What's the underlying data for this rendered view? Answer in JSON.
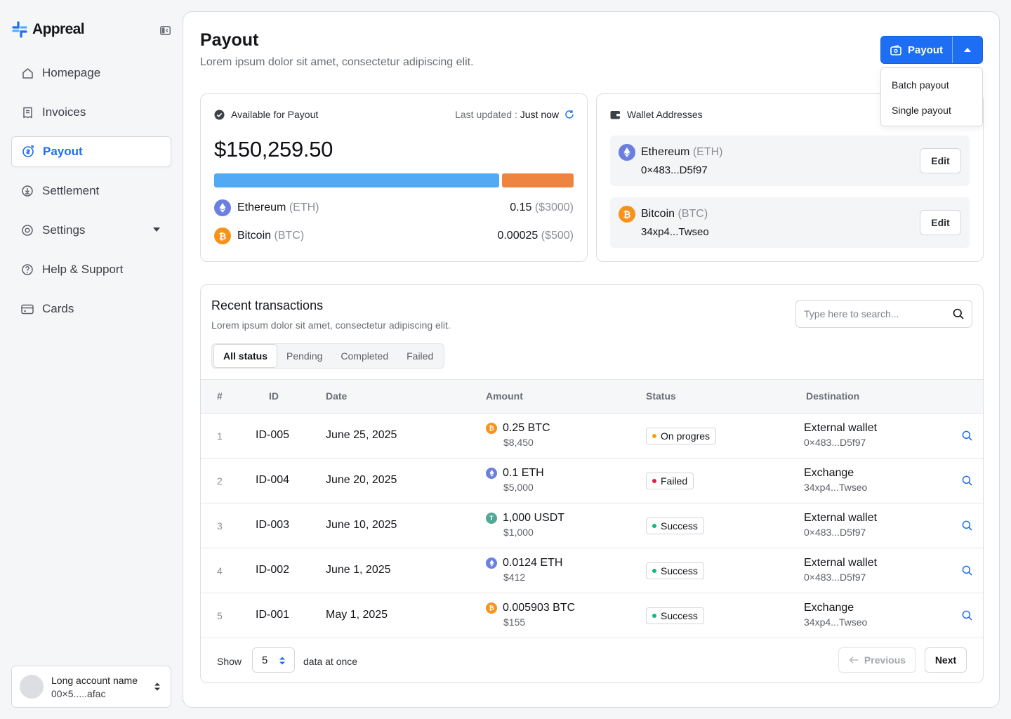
{
  "app": {
    "name": "Appreal"
  },
  "sidebar": {
    "items": [
      {
        "label": "Homepage",
        "icon": "home-icon"
      },
      {
        "label": "Invoices",
        "icon": "receipt-icon"
      },
      {
        "label": "Payout",
        "icon": "payout-icon",
        "active": true
      },
      {
        "label": "Settlement",
        "icon": "settlement-icon"
      },
      {
        "label": "Settings",
        "icon": "gear-icon",
        "has_submenu": true
      },
      {
        "label": "Help & Support",
        "icon": "help-icon"
      },
      {
        "label": "Cards",
        "icon": "card-icon"
      }
    ],
    "account": {
      "name": "Long account name",
      "address": "00×5.....afac"
    }
  },
  "header": {
    "title": "Payout",
    "subtitle": "Lorem ipsum dolor sit amet, consectetur adipiscing elit.",
    "payout_button": "Payout",
    "dropdown": [
      "Batch payout",
      "Single payout"
    ]
  },
  "available": {
    "label": "Available for Payout",
    "last_updated_label": "Last updated :",
    "last_updated_value": "Just now",
    "amount": "$150,259.50",
    "split_fraction": {
      "eth": 0.8,
      "btc": 0.2
    },
    "coins": [
      {
        "name": "Ethereum",
        "ticker": "(ETH)",
        "amount": "0.15",
        "usd": "($3000)",
        "icon": "eth-icon"
      },
      {
        "name": "Bitcoin",
        "ticker": "(BTC)",
        "amount": "0.00025",
        "usd": "($500)",
        "icon": "btc-icon"
      }
    ]
  },
  "wallets": {
    "label": "Wallet Addresses",
    "items": [
      {
        "name": "Ethereum",
        "ticker": "(ETH)",
        "address": "0×483...D5f97",
        "edit": "Edit"
      },
      {
        "name": "Bitcoin",
        "ticker": "(BTC)",
        "address": "34xp4...Twseo",
        "edit": "Edit"
      }
    ]
  },
  "transactions": {
    "title": "Recent transactions",
    "subtitle": "Lorem ipsum dolor sit amet, consectetur adipiscing elit.",
    "search_placeholder": "Type here to search...",
    "tabs": [
      "All status",
      "Pending",
      "Completed",
      "Failed"
    ],
    "columns": [
      "#",
      "ID",
      "Date",
      "Amount",
      "Status",
      "Destination"
    ],
    "rows": [
      {
        "num": "1",
        "id": "ID-005",
        "date": "June 25, 2025",
        "amount": "0.25 BTC",
        "usd": "$8,450",
        "coin": "btc",
        "status": "On progres",
        "status_color": "#f59e0b",
        "dest": "External wallet",
        "dest_addr": "0×483...D5f97"
      },
      {
        "num": "2",
        "id": "ID-004",
        "date": "June 20, 2025",
        "amount": "0.1 ETH",
        "usd": "$5,000",
        "coin": "eth",
        "status": "Failed",
        "status_color": "#e11d48",
        "dest": "Exchange",
        "dest_addr": "34xp4...Twseo"
      },
      {
        "num": "3",
        "id": "ID-003",
        "date": "June 10, 2025",
        "amount": "1,000 USDT",
        "usd": "$1,000",
        "coin": "usdt",
        "status": "Success",
        "status_color": "#10b981",
        "dest": "External wallet",
        "dest_addr": "0×483...D5f97"
      },
      {
        "num": "4",
        "id": "ID-002",
        "date": "June 1, 2025",
        "amount": "0.0124 ETH",
        "usd": "$412",
        "coin": "eth",
        "status": "Success",
        "status_color": "#10b981",
        "dest": "External wallet",
        "dest_addr": "0×483...D5f97"
      },
      {
        "num": "5",
        "id": "ID-001",
        "date": "May 1, 2025",
        "amount": "0.005903 BTC",
        "usd": "$155",
        "coin": "btc",
        "status": "Success",
        "status_color": "#10b981",
        "dest": "Exchange",
        "dest_addr": "34xp4...Twseo"
      }
    ],
    "footer": {
      "show": "Show",
      "page_size": "5",
      "suffix": "data at once",
      "previous": "Previous",
      "next": "Next"
    }
  },
  "colors": {
    "accent": "#1d6ef2",
    "eth_bar": "#52aaf5",
    "btc_bar": "#ef8440"
  }
}
